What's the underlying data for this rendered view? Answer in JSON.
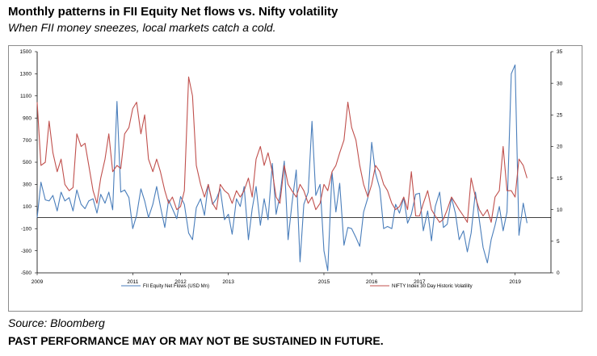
{
  "header": {
    "title": "Monthly patterns in FII Equity Net flows vs. Nifty volatility",
    "subtitle": "When FII money sneezes, local markets catch a cold."
  },
  "footer": {
    "source": "Source: Bloomberg",
    "disclaimer": "PAST PERFORMANCE MAY OR MAY NOT BE SUSTAINED IN FUTURE."
  },
  "colors": {
    "fii": "#4a7ebb",
    "vol": "#c0504d",
    "axis": "#000000",
    "frame": "#8c8c8c"
  },
  "chart_data": {
    "type": "line",
    "title": "Monthly patterns in FII Equity Net flows vs. Nifty volatility",
    "subtitle": "When FII money sneezes, local markets catch a cold.",
    "x_start": 2009.0,
    "x_end": 2019.75,
    "x_ticks": [
      2009,
      2011,
      2012,
      2013,
      2015,
      2016,
      2017,
      2019
    ],
    "x_tick_labels": [
      "2009",
      "2011",
      "2012",
      "2013",
      "2015",
      "2016",
      "2017",
      "2019"
    ],
    "y_left": {
      "min": -500,
      "max": 1500,
      "ticks": [
        -500,
        -300,
        -100,
        100,
        300,
        500,
        700,
        900,
        1100,
        1300,
        1500
      ],
      "tick_labels": [
        "-500",
        "-300",
        "-100",
        "100",
        "300",
        "500",
        "700",
        "900",
        "1100",
        "1300",
        "1500"
      ]
    },
    "y_right": {
      "min": 0,
      "max": 35,
      "ticks": [
        0,
        5,
        10,
        15,
        20,
        25,
        30,
        35
      ],
      "tick_labels": [
        "0",
        "5",
        "10",
        "15",
        "20",
        "25",
        "30",
        "35"
      ]
    },
    "zero_line": 0,
    "grid": false,
    "legend_position": "bottom",
    "series": [
      {
        "name": "FII Equity Net Flows (USD Mn)",
        "axis": "left",
        "color": "#4a7ebb",
        "points": [
          [
            2009.0,
            0
          ],
          [
            2009.08,
            320
          ],
          [
            2009.17,
            160
          ],
          [
            2009.25,
            150
          ],
          [
            2009.33,
            200
          ],
          [
            2009.42,
            60
          ],
          [
            2009.5,
            230
          ],
          [
            2009.58,
            150
          ],
          [
            2009.67,
            180
          ],
          [
            2009.75,
            60
          ],
          [
            2009.83,
            250
          ],
          [
            2009.92,
            120
          ],
          [
            2010.0,
            80
          ],
          [
            2010.08,
            150
          ],
          [
            2010.17,
            170
          ],
          [
            2010.25,
            40
          ],
          [
            2010.33,
            210
          ],
          [
            2010.42,
            130
          ],
          [
            2010.5,
            230
          ],
          [
            2010.58,
            70
          ],
          [
            2010.67,
            1050
          ],
          [
            2010.75,
            230
          ],
          [
            2010.83,
            250
          ],
          [
            2010.92,
            180
          ],
          [
            2011.0,
            -100
          ],
          [
            2011.08,
            20
          ],
          [
            2011.17,
            260
          ],
          [
            2011.25,
            150
          ],
          [
            2011.33,
            0
          ],
          [
            2011.42,
            120
          ],
          [
            2011.5,
            280
          ],
          [
            2011.58,
            100
          ],
          [
            2011.67,
            -90
          ],
          [
            2011.75,
            160
          ],
          [
            2011.83,
            80
          ],
          [
            2011.92,
            -10
          ],
          [
            2012.0,
            190
          ],
          [
            2012.08,
            120
          ],
          [
            2012.17,
            -140
          ],
          [
            2012.25,
            -200
          ],
          [
            2012.33,
            90
          ],
          [
            2012.42,
            170
          ],
          [
            2012.5,
            20
          ],
          [
            2012.58,
            300
          ],
          [
            2012.67,
            120
          ],
          [
            2012.75,
            170
          ],
          [
            2012.83,
            260
          ],
          [
            2012.92,
            -20
          ],
          [
            2013.0,
            30
          ],
          [
            2013.08,
            -150
          ],
          [
            2013.17,
            170
          ],
          [
            2013.25,
            100
          ],
          [
            2013.33,
            280
          ],
          [
            2013.42,
            -200
          ],
          [
            2013.5,
            80
          ],
          [
            2013.58,
            280
          ],
          [
            2013.67,
            -70
          ],
          [
            2013.75,
            170
          ],
          [
            2013.83,
            -20
          ],
          [
            2013.92,
            490
          ],
          [
            2014.0,
            30
          ],
          [
            2014.08,
            200
          ],
          [
            2014.17,
            510
          ],
          [
            2014.25,
            -200
          ],
          [
            2014.33,
            120
          ],
          [
            2014.42,
            430
          ],
          [
            2014.5,
            -400
          ],
          [
            2014.58,
            120
          ],
          [
            2014.67,
            230
          ],
          [
            2014.75,
            870
          ],
          [
            2014.83,
            200
          ],
          [
            2014.92,
            300
          ],
          [
            2015.0,
            -300
          ],
          [
            2015.08,
            -480
          ],
          [
            2015.17,
            410
          ],
          [
            2015.25,
            50
          ],
          [
            2015.33,
            310
          ],
          [
            2015.42,
            -250
          ],
          [
            2015.5,
            -90
          ],
          [
            2015.58,
            -100
          ],
          [
            2015.67,
            -180
          ],
          [
            2015.75,
            -260
          ],
          [
            2015.83,
            50
          ],
          [
            2015.92,
            180
          ],
          [
            2016.0,
            680
          ],
          [
            2016.08,
            400
          ],
          [
            2016.17,
            260
          ],
          [
            2016.25,
            -100
          ],
          [
            2016.33,
            -80
          ],
          [
            2016.42,
            -100
          ],
          [
            2016.5,
            120
          ],
          [
            2016.58,
            40
          ],
          [
            2016.67,
            180
          ],
          [
            2016.75,
            -50
          ],
          [
            2016.83,
            30
          ],
          [
            2016.92,
            210
          ],
          [
            2017.0,
            220
          ],
          [
            2017.08,
            -120
          ],
          [
            2017.17,
            60
          ],
          [
            2017.25,
            -210
          ],
          [
            2017.33,
            100
          ],
          [
            2017.42,
            230
          ],
          [
            2017.5,
            -90
          ],
          [
            2017.58,
            -60
          ],
          [
            2017.67,
            180
          ],
          [
            2017.75,
            40
          ],
          [
            2017.83,
            -200
          ],
          [
            2017.92,
            -120
          ],
          [
            2018.0,
            -310
          ],
          [
            2018.08,
            -140
          ],
          [
            2018.17,
            230
          ],
          [
            2018.25,
            -20
          ],
          [
            2018.33,
            -270
          ],
          [
            2018.42,
            -410
          ],
          [
            2018.5,
            -200
          ],
          [
            2018.58,
            -70
          ],
          [
            2018.67,
            100
          ],
          [
            2018.75,
            -120
          ],
          [
            2018.83,
            50
          ],
          [
            2018.92,
            1300
          ],
          [
            2019.0,
            1380
          ],
          [
            2019.08,
            -160
          ],
          [
            2019.17,
            130
          ],
          [
            2019.25,
            -50
          ]
        ]
      },
      {
        "name": "NIFTY Index 30 Day Historic Volatility",
        "axis": "right",
        "color": "#c0504d",
        "points": [
          [
            2009.0,
            27
          ],
          [
            2009.08,
            17
          ],
          [
            2009.17,
            17.5
          ],
          [
            2009.25,
            24
          ],
          [
            2009.33,
            19
          ],
          [
            2009.42,
            16
          ],
          [
            2009.5,
            18
          ],
          [
            2009.58,
            14
          ],
          [
            2009.67,
            13
          ],
          [
            2009.75,
            13.5
          ],
          [
            2009.83,
            22
          ],
          [
            2009.92,
            20
          ],
          [
            2010.0,
            20.5
          ],
          [
            2010.08,
            17
          ],
          [
            2010.17,
            13
          ],
          [
            2010.25,
            11
          ],
          [
            2010.33,
            15
          ],
          [
            2010.42,
            18
          ],
          [
            2010.5,
            22
          ],
          [
            2010.58,
            16
          ],
          [
            2010.67,
            17
          ],
          [
            2010.75,
            16.5
          ],
          [
            2010.83,
            22
          ],
          [
            2010.92,
            23
          ],
          [
            2011.0,
            26
          ],
          [
            2011.08,
            27
          ],
          [
            2011.17,
            22
          ],
          [
            2011.25,
            25
          ],
          [
            2011.33,
            18
          ],
          [
            2011.42,
            16
          ],
          [
            2011.5,
            18
          ],
          [
            2011.58,
            16
          ],
          [
            2011.67,
            13
          ],
          [
            2011.75,
            11
          ],
          [
            2011.83,
            12
          ],
          [
            2011.92,
            10
          ],
          [
            2012.0,
            10.5
          ],
          [
            2012.08,
            13
          ],
          [
            2012.17,
            31
          ],
          [
            2012.25,
            28
          ],
          [
            2012.33,
            17
          ],
          [
            2012.42,
            14
          ],
          [
            2012.5,
            12
          ],
          [
            2012.58,
            14
          ],
          [
            2012.67,
            11
          ],
          [
            2012.75,
            10
          ],
          [
            2012.83,
            14
          ],
          [
            2012.92,
            13
          ],
          [
            2013.0,
            12.5
          ],
          [
            2013.08,
            11
          ],
          [
            2013.17,
            13
          ],
          [
            2013.25,
            12
          ],
          [
            2013.33,
            13
          ],
          [
            2013.42,
            15
          ],
          [
            2013.5,
            12
          ],
          [
            2013.58,
            18
          ],
          [
            2013.67,
            20
          ],
          [
            2013.75,
            17
          ],
          [
            2013.83,
            19
          ],
          [
            2013.92,
            16
          ],
          [
            2014.0,
            12
          ],
          [
            2014.08,
            11
          ],
          [
            2014.17,
            17
          ],
          [
            2014.25,
            14
          ],
          [
            2014.33,
            13
          ],
          [
            2014.42,
            12
          ],
          [
            2014.5,
            14
          ],
          [
            2014.58,
            13
          ],
          [
            2014.67,
            11
          ],
          [
            2014.75,
            12
          ],
          [
            2014.83,
            10
          ],
          [
            2014.92,
            11
          ],
          [
            2015.0,
            14
          ],
          [
            2015.08,
            13
          ],
          [
            2015.17,
            16
          ],
          [
            2015.25,
            17
          ],
          [
            2015.33,
            19
          ],
          [
            2015.42,
            21
          ],
          [
            2015.5,
            27
          ],
          [
            2015.58,
            23
          ],
          [
            2015.67,
            21
          ],
          [
            2015.75,
            17
          ],
          [
            2015.83,
            14
          ],
          [
            2015.92,
            12
          ],
          [
            2016.0,
            14
          ],
          [
            2016.08,
            17
          ],
          [
            2016.17,
            16
          ],
          [
            2016.25,
            14
          ],
          [
            2016.33,
            13
          ],
          [
            2016.42,
            11
          ],
          [
            2016.5,
            10
          ],
          [
            2016.58,
            10.5
          ],
          [
            2016.67,
            12
          ],
          [
            2016.75,
            10
          ],
          [
            2016.83,
            16
          ],
          [
            2016.92,
            9
          ],
          [
            2017.0,
            9
          ],
          [
            2017.08,
            11
          ],
          [
            2017.17,
            13
          ],
          [
            2017.25,
            10
          ],
          [
            2017.33,
            9
          ],
          [
            2017.42,
            8
          ],
          [
            2017.5,
            8.5
          ],
          [
            2017.58,
            10
          ],
          [
            2017.67,
            12
          ],
          [
            2017.75,
            11
          ],
          [
            2017.83,
            10
          ],
          [
            2017.92,
            9
          ],
          [
            2018.0,
            8
          ],
          [
            2018.08,
            15
          ],
          [
            2018.17,
            12
          ],
          [
            2018.25,
            10
          ],
          [
            2018.33,
            9
          ],
          [
            2018.42,
            10
          ],
          [
            2018.5,
            8
          ],
          [
            2018.58,
            12
          ],
          [
            2018.67,
            13
          ],
          [
            2018.75,
            20
          ],
          [
            2018.83,
            13
          ],
          [
            2018.92,
            13
          ],
          [
            2019.0,
            12
          ],
          [
            2019.08,
            18
          ],
          [
            2019.17,
            17
          ],
          [
            2019.25,
            15
          ]
        ]
      }
    ]
  }
}
